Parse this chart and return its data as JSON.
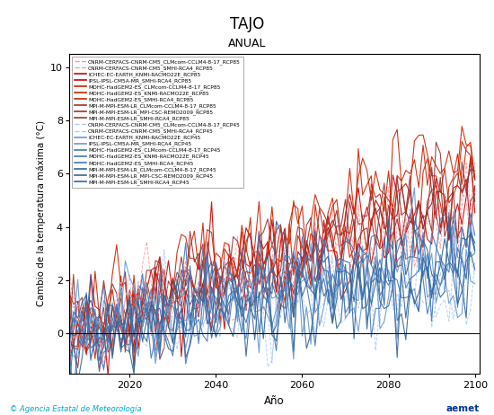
{
  "title": "TAJO",
  "subtitle": "ANUAL",
  "ylabel": "Cambio de la temperatura máxima (°C)",
  "xlabel": "Año",
  "xlim": [
    2006,
    2101
  ],
  "ylim": [
    -1.5,
    10.5
  ],
  "yticks": [
    0,
    2,
    4,
    6,
    8,
    10
  ],
  "xticks": [
    2020,
    2040,
    2060,
    2080,
    2100
  ],
  "legend_rcp85": [
    "CNRM-CERFACS-CNRM-CM5_CLMcom-CCLM4-8-17_RCP85",
    "CNRM-CERFACS-CNRM-CM5_SMHI-RCA4_RCP85",
    "ICHEC-EC-EARTH_KNMI-RACMO22E_RCP85",
    "IPSL-IPSL-CM5A-MR_SMHI-RCA4_RCP85",
    "MOHC-HadGEM2-ES_CLMcom-CCLM4-8-17_RCP85",
    "MOHC-HadGEM2-ES_KNMI-RACMO22E_RCP85",
    "MOHC-HadGEM2-ES_SMHI-RCA4_RCP85",
    "MPI-M-MPI-ESM-LR_CLMcom-CCLM4-8-17_RCP85",
    "MPI-M-MPI-ESM-LR_MPI-CSC-REMO2009_RCP85",
    "MPI-M-MPI-ESM-LR_SMHI-RCA4_RCP85"
  ],
  "legend_rcp45": [
    "CNRM-CERFACS-CNRM-CM5_CLMcom-CCLM4-8-17_RCP45",
    "CNRM-CERFACS-CNRM-CM5_SMHI-RCA4_RCP45",
    "ICHEC-EC-EARTH_KNMI-RACMO22E_RCP45",
    "IPSL-IPSL-CM5A-MR_SMHI-RCA4_RCP45",
    "MOHC-HadGEM2-ES_CLMcom-CCLM4-8-17_RCP45",
    "MOHC-HadGEM2-ES_KNMI-RACMO22E_RCP45",
    "MOHC-HadGEM2-ES_SMHI-RCA4_RCP45",
    "MPI-M-MPI-ESM-LR_CLMcom-CCLM4-8-17_RCP45",
    "MPI-M-MPI-ESM-LR_MPI-CSC-REMO2009_RCP45",
    "MPI-M-MPI-ESM-LR_SMHI-RCA4_RCP45"
  ],
  "rcp85_dashed": [
    true,
    true,
    false,
    false,
    false,
    false,
    false,
    false,
    false,
    false
  ],
  "rcp85_line_colors": [
    "#FF9999",
    "#FF9999",
    "#CC0000",
    "#CC0000",
    "#CC2200",
    "#CC2200",
    "#CC2200",
    "#993333",
    "#993333",
    "#993333"
  ],
  "rcp45_dashed": [
    true,
    true,
    false,
    false,
    false,
    false,
    false,
    false,
    false,
    false
  ],
  "rcp45_line_colors": [
    "#AACCFF",
    "#AACCFF",
    "#6699CC",
    "#6699CC",
    "#4477BB",
    "#4477BB",
    "#4477BB",
    "#336699",
    "#336699",
    "#336699"
  ],
  "start_year": 2006,
  "end_year": 2100,
  "n_years": 95,
  "background_color": "#FFFFFF",
  "footer_left": "© Agencia Estatal de Meteorología",
  "footer_right": "aemet"
}
